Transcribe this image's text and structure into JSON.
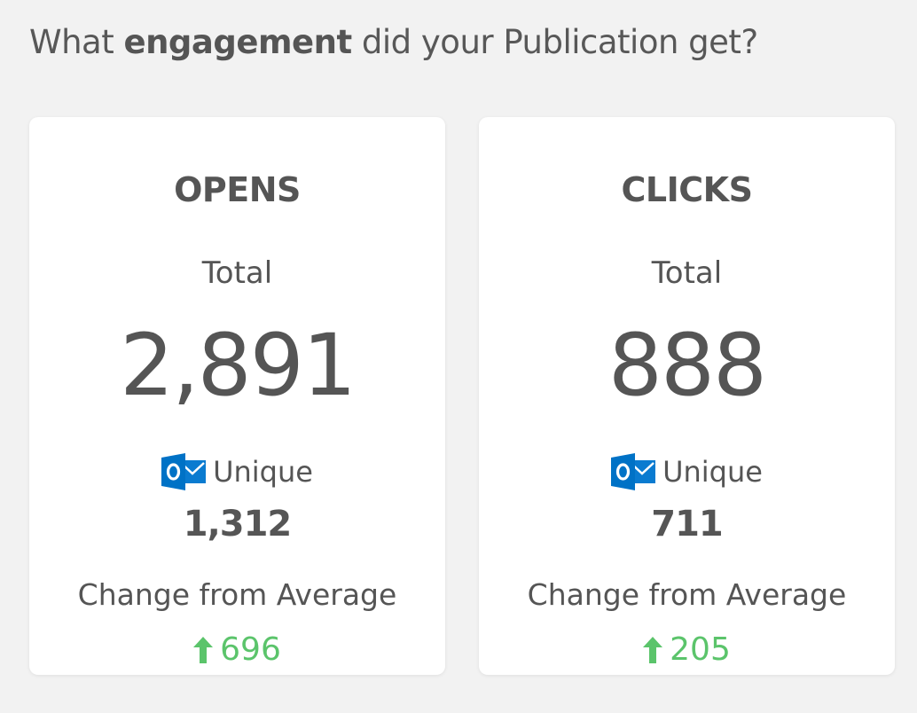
{
  "header": {
    "prefix": "What ",
    "emphasis": "engagement",
    "suffix": " did your Publication get?"
  },
  "cards": [
    {
      "title": "OPENS",
      "total_label": "Total",
      "total_value": "2,891",
      "unique_label": "Unique",
      "unique_value": "1,312",
      "change_label": "Change from Average",
      "change_value": "696",
      "change_direction": "up"
    },
    {
      "title": "CLICKS",
      "total_label": "Total",
      "total_value": "888",
      "unique_label": "Unique",
      "unique_value": "711",
      "change_label": "Change from Average",
      "change_value": "205",
      "change_direction": "up"
    }
  ],
  "icons": {
    "unique": "outlook-icon",
    "change": "arrow-up-icon"
  },
  "colors": {
    "background": "#f2f2f2",
    "card": "#ffffff",
    "text": "#555555",
    "positive": "#5bc46b",
    "outlook_blue": "#0072c6"
  }
}
